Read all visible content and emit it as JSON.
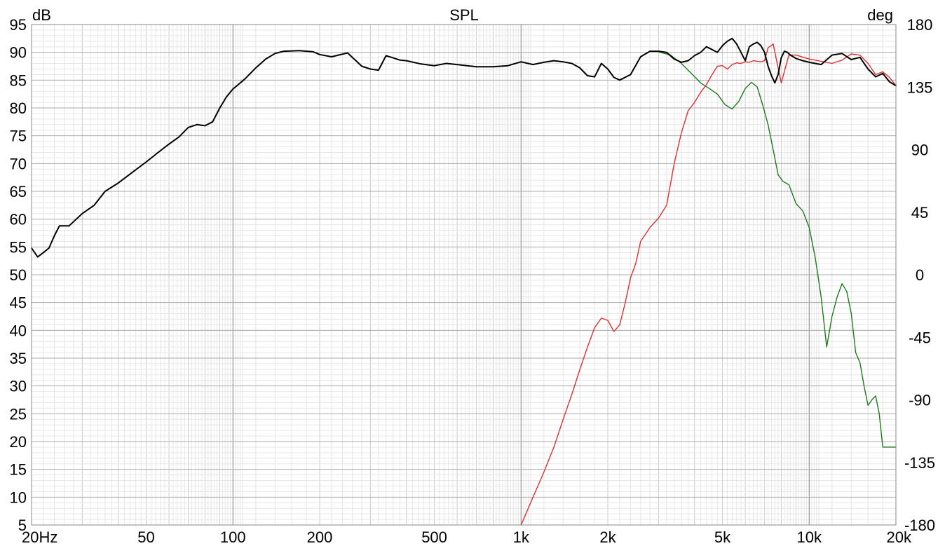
{
  "chart_data": {
    "type": "line",
    "title": "SPL",
    "y_left_unit": "dB",
    "y_right_unit": "deg",
    "x_scale": "log",
    "xlim": [
      20,
      20000
    ],
    "ylim": [
      5,
      95
    ],
    "y2lim": [
      -180,
      180
    ],
    "grid": true,
    "x_ticks": [
      {
        "value": 20,
        "label": "20Hz"
      },
      {
        "value": 50,
        "label": "50"
      },
      {
        "value": 100,
        "label": "100"
      },
      {
        "value": 200,
        "label": "200"
      },
      {
        "value": 500,
        "label": "500"
      },
      {
        "value": 1000,
        "label": "1k"
      },
      {
        "value": 2000,
        "label": "2k"
      },
      {
        "value": 5000,
        "label": "5k"
      },
      {
        "value": 10000,
        "label": "10k"
      },
      {
        "value": 20000,
        "label": "20k"
      }
    ],
    "y_ticks": [
      {
        "value": 95,
        "label": "95"
      },
      {
        "value": 90,
        "label": "90"
      },
      {
        "value": 85,
        "label": "85"
      },
      {
        "value": 80,
        "label": "80"
      },
      {
        "value": 75,
        "label": "75"
      },
      {
        "value": 70,
        "label": "70"
      },
      {
        "value": 65,
        "label": "65"
      },
      {
        "value": 60,
        "label": "60"
      },
      {
        "value": 55,
        "label": "55"
      },
      {
        "value": 50,
        "label": "50"
      },
      {
        "value": 45,
        "label": "45"
      },
      {
        "value": 40,
        "label": "40"
      },
      {
        "value": 35,
        "label": "35"
      },
      {
        "value": 30,
        "label": "30"
      },
      {
        "value": 25,
        "label": "25"
      },
      {
        "value": 20,
        "label": "20"
      },
      {
        "value": 15,
        "label": "15"
      },
      {
        "value": 10,
        "label": "10"
      },
      {
        "value": 5,
        "label": "5"
      }
    ],
    "y2_ticks": [
      {
        "value": 180,
        "label": "180"
      },
      {
        "value": 135,
        "label": "135"
      },
      {
        "value": 90,
        "label": "90"
      },
      {
        "value": 45,
        "label": "45"
      },
      {
        "value": 0,
        "label": "0"
      },
      {
        "value": -45,
        "label": "-45"
      },
      {
        "value": -90,
        "label": "-90"
      },
      {
        "value": -135,
        "label": "-135"
      },
      {
        "value": -180,
        "label": "-180"
      }
    ],
    "series": [
      {
        "color": "#000000",
        "stroke_width": 2,
        "x": [
          20,
          21,
          22,
          23,
          24,
          25,
          27,
          30,
          33,
          36,
          40,
          45,
          50,
          55,
          60,
          65,
          70,
          75,
          80,
          85,
          90,
          95,
          100,
          110,
          120,
          130,
          140,
          150,
          170,
          190,
          200,
          220,
          250,
          280,
          300,
          320,
          340,
          360,
          380,
          400,
          450,
          500,
          550,
          600,
          700,
          800,
          900,
          1000,
          1100,
          1200,
          1300,
          1400,
          1500,
          1600,
          1700,
          1800,
          1900,
          2000,
          2100,
          2200,
          2400,
          2600,
          2800,
          3000,
          3200,
          3400,
          3600,
          3800,
          4000,
          4200,
          4400,
          4600,
          4800,
          5000,
          5200,
          5400,
          5600,
          5800,
          6000,
          6200,
          6400,
          6600,
          6800,
          7000,
          7200,
          7400,
          7600,
          7800,
          8000,
          8200,
          8400,
          8600,
          8800,
          9000,
          9500,
          10000,
          11000,
          12000,
          13000,
          14000,
          15000,
          16000,
          17000,
          18000,
          19000,
          20000
        ],
        "values": [
          54.8,
          53.2,
          54,
          54.8,
          57,
          58.8,
          58.8,
          61,
          62.5,
          65,
          66.5,
          68.5,
          70.3,
          72,
          73.5,
          74.8,
          76.5,
          77,
          76.8,
          77.5,
          80,
          82,
          83.4,
          85.2,
          87.2,
          88.8,
          89.8,
          90.2,
          90.3,
          90.1,
          89.6,
          89.2,
          89.9,
          87.5,
          87.0,
          86.8,
          89.4,
          89.0,
          88.6,
          88.5,
          87.9,
          87.6,
          88.0,
          87.8,
          87.4,
          87.4,
          87.6,
          88.3,
          87.8,
          88.2,
          88.5,
          88.3,
          88.0,
          87.2,
          85.8,
          85.6,
          88.0,
          87.0,
          85.5,
          85.0,
          86.0,
          89.2,
          90.2,
          90.2,
          90.0,
          88.8,
          88.2,
          88.5,
          89.4,
          90.0,
          91.0,
          90.5,
          90.0,
          91.2,
          92.0,
          92.5,
          91.5,
          90.0,
          88.5,
          91.0,
          91.5,
          91.8,
          91.2,
          90.0,
          87.5,
          85.8,
          84.5,
          86.0,
          89.0,
          90.2,
          90.0,
          89.5,
          89.2,
          88.9,
          88.5,
          88.2,
          87.8,
          89.5,
          89.8,
          88.7,
          89.1,
          87.0,
          85.6,
          86.2,
          84.7,
          84.0
        ]
      },
      {
        "color": "#1e7a1e",
        "stroke_width": 1.4,
        "x": [
          3000,
          3300,
          3600,
          3900,
          4200,
          4500,
          4800,
          5100,
          5400,
          5700,
          6000,
          6300,
          6600,
          6900,
          7200,
          7500,
          7800,
          8100,
          8500,
          9000,
          9500,
          10000,
          10500,
          11000,
          11500,
          12000,
          12500,
          13000,
          13500,
          14000,
          14500,
          15000,
          15500,
          16000,
          16500,
          17000,
          17500,
          18000,
          18500,
          19000,
          19500,
          20000
        ],
        "values": [
          90.1,
          89.5,
          88.0,
          86.2,
          84.5,
          83.5,
          82.5,
          80.6,
          79.8,
          81.2,
          83.5,
          84.6,
          83.8,
          80.5,
          77.0,
          72.5,
          68.0,
          66.8,
          66.2,
          62.8,
          61.5,
          58.5,
          53.0,
          46.0,
          37.0,
          42.5,
          46.0,
          48.4,
          47.0,
          43.0,
          36.0,
          34.2,
          30.0,
          26.5,
          27.5,
          28.2,
          25.0,
          19.0,
          19.0,
          19.0,
          19.0,
          19.0
        ]
      },
      {
        "color": "#e03030",
        "stroke_width": 1.4,
        "x": [
          1000,
          1100,
          1200,
          1300,
          1400,
          1500,
          1600,
          1700,
          1800,
          1900,
          2000,
          2100,
          2200,
          2300,
          2400,
          2500,
          2600,
          2800,
          3000,
          3200,
          3400,
          3600,
          3800,
          4000,
          4200,
          4400,
          4600,
          4800,
          5000,
          5200,
          5400,
          5600,
          5800,
          6000,
          6200,
          6400,
          6600,
          6800,
          7000,
          7200,
          7500,
          8000,
          8500,
          9000,
          10000,
          11000,
          12000,
          13000,
          14000,
          15000,
          16000,
          17000,
          18000,
          19000,
          20000
        ],
        "values": [
          5,
          10,
          14.5,
          19,
          24,
          28.5,
          33,
          37,
          40.5,
          42.2,
          41.8,
          39.8,
          41.0,
          45.0,
          49.5,
          52.0,
          56.0,
          58.5,
          60.2,
          62.5,
          70.0,
          75.5,
          79.5,
          81.0,
          82.8,
          84.2,
          86.0,
          87.5,
          87.6,
          87.0,
          87.8,
          88.1,
          88.0,
          88.3,
          88.2,
          88.5,
          88.4,
          88.3,
          88.5,
          90.8,
          91.5,
          84.5,
          89.5,
          89.5,
          88.8,
          88.4,
          88.0,
          88.6,
          89.7,
          89.5,
          88.0,
          86.0,
          86.5,
          85.5,
          84.0
        ]
      }
    ]
  }
}
